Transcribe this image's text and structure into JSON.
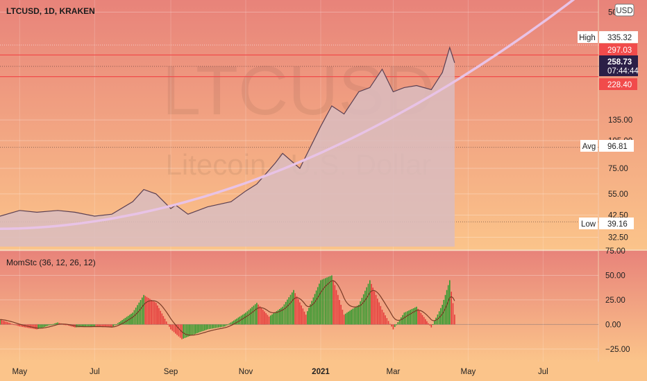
{
  "header": {
    "symbol_line": "LTCUSD, 1D, KRAKEN",
    "watermark_symbol": "LTCUSD",
    "watermark_name": "Litecoin / U.S. Dollar"
  },
  "currency_badge": "USD",
  "price_axis": {
    "scale": "log",
    "ticks": [
      "500.00",
      "135.00",
      "105.00",
      "75.00",
      "55.00",
      "42.50",
      "32.50"
    ]
  },
  "tags": {
    "high": {
      "label": "High",
      "value": "335.32"
    },
    "level_top": {
      "value": "297.03"
    },
    "last": {
      "value": "258.73",
      "countdown": "07:44:44"
    },
    "level_bottom": {
      "value": "228.40"
    },
    "avg": {
      "label": "Avg",
      "value": "96.81"
    },
    "low": {
      "label": "Low",
      "value": "39.16"
    }
  },
  "oscillator": {
    "title": "MomStc (36, 12, 26, 12)",
    "ticks": [
      "75.00",
      "50.00",
      "25.00",
      "0.00",
      "−25.00"
    ]
  },
  "time_axis": {
    "labels": [
      "May",
      "Jul",
      "Sep",
      "Nov",
      "2021",
      "Mar",
      "May",
      "Jul"
    ]
  },
  "colors": {
    "bg_top": "#e8837a",
    "bg_bottom": "#fbc48a",
    "area": "#d9bcc0",
    "price_line": "#5a3f52",
    "curve": "#e8c3e6",
    "red_level": "#f14b4b",
    "last_tag": "#2b1f47",
    "osc_up": "#2e9b2e",
    "osc_down": "#e53b3b",
    "osc_signal": "#7a3b26"
  },
  "chart_data": [
    {
      "type": "area",
      "y_scale": "log",
      "ylim": [
        29,
        560
      ],
      "x": [
        "2020-04-15",
        "2020-05-01",
        "2020-05-15",
        "2020-06-01",
        "2020-06-15",
        "2020-07-01",
        "2020-07-15",
        "2020-08-01",
        "2020-08-10",
        "2020-08-20",
        "2020-09-01",
        "2020-09-05",
        "2020-09-15",
        "2020-10-01",
        "2020-10-20",
        "2020-11-01",
        "2020-11-10",
        "2020-11-25",
        "2020-12-01",
        "2020-12-15",
        "2021-01-01",
        "2021-01-10",
        "2021-01-20",
        "2021-02-01",
        "2021-02-10",
        "2021-02-20",
        "2021-03-01",
        "2021-03-10",
        "2021-03-20",
        "2021-04-01",
        "2021-04-10",
        "2021-04-16",
        "2021-04-20"
      ],
      "series": [
        {
          "values": [
            42,
            45,
            44,
            45,
            44,
            42,
            43,
            50,
            58,
            55,
            46,
            48,
            43,
            47,
            50,
            57,
            62,
            80,
            90,
            75,
            125,
            160,
            145,
            190,
            200,
            250,
            190,
            200,
            205,
            195,
            240,
            325,
            270
          ]
        }
      ],
      "levels": [
        297.03,
        228.4
      ],
      "last": 258.73,
      "high": 335.32,
      "avg": 96.81,
      "low": 39.16
    },
    {
      "type": "bar",
      "ylim": [
        -35,
        75
      ],
      "x": [
        "2020-04-15",
        "2020-05-01",
        "2020-05-15",
        "2020-06-01",
        "2020-06-15",
        "2020-07-01",
        "2020-07-15",
        "2020-08-01",
        "2020-08-10",
        "2020-08-20",
        "2020-09-01",
        "2020-09-10",
        "2020-09-20",
        "2020-10-01",
        "2020-10-15",
        "2020-11-01",
        "2020-11-10",
        "2020-11-20",
        "2020-12-01",
        "2020-12-10",
        "2020-12-20",
        "2021-01-01",
        "2021-01-10",
        "2021-01-20",
        "2021-02-01",
        "2021-02-10",
        "2021-02-20",
        "2021-03-01",
        "2021-03-10",
        "2021-03-20",
        "2021-04-01",
        "2021-04-10",
        "2021-04-16",
        "2021-04-20"
      ],
      "series": [
        {
          "name": "MomStc",
          "values": [
            5,
            -2,
            -5,
            2,
            -3,
            -2,
            -3,
            12,
            30,
            22,
            -5,
            -15,
            -10,
            -5,
            -2,
            12,
            22,
            8,
            18,
            35,
            10,
            45,
            50,
            10,
            20,
            45,
            15,
            -5,
            12,
            18,
            -3,
            20,
            45,
            10
          ]
        }
      ]
    }
  ]
}
